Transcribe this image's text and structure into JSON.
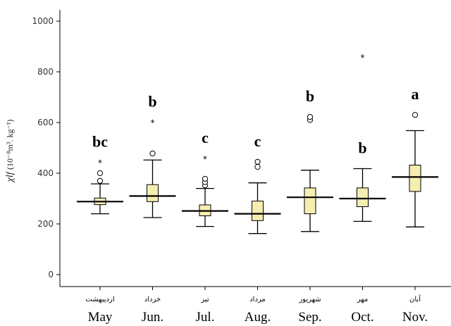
{
  "chart_data": {
    "type": "box",
    "title": "",
    "xlabel": "",
    "ylabel_main": "χlf",
    "ylabel_unit": "(10⁻⁸m³. kg⁻¹)",
    "ylim": [
      0,
      1000
    ],
    "yticks": [
      0,
      200,
      400,
      600,
      800,
      1000
    ],
    "grid": false,
    "colors": {
      "box_fill": "#f5eeb0",
      "stroke": "#000000"
    },
    "categories": [
      {
        "label": "May",
        "label_fa": "اردیبهشت",
        "letter": "bc",
        "min": 240,
        "q1": 276,
        "median": 288,
        "q3": 302,
        "max": 358,
        "outliers": [
          370,
          400
        ],
        "extremes": [
          443
        ]
      },
      {
        "label": "Jun.",
        "label_fa": "خرداد",
        "letter": "b",
        "min": 225,
        "q1": 288,
        "median": 310,
        "q3": 355,
        "max": 452,
        "outliers": [
          478
        ],
        "extremes": [
          602
        ]
      },
      {
        "label": "Jul.",
        "label_fa": "تیر",
        "letter": "c",
        "min": 190,
        "q1": 232,
        "median": 251,
        "q3": 275,
        "max": 340,
        "outliers": [
          352,
          365,
          378
        ],
        "extremes": [
          458
        ]
      },
      {
        "label": "Aug.",
        "label_fa": "مرداد",
        "letter": "c",
        "min": 162,
        "q1": 213,
        "median": 240,
        "q3": 290,
        "max": 362,
        "outliers": [
          425,
          445
        ],
        "extremes": []
      },
      {
        "label": "Sep.",
        "label_fa": "شهریور",
        "letter": "b",
        "min": 170,
        "q1": 240,
        "median": 305,
        "q3": 342,
        "max": 412,
        "outliers": [
          610,
          622
        ],
        "extremes": []
      },
      {
        "label": "Oct.",
        "label_fa": "مهر",
        "letter": "b",
        "min": 210,
        "q1": 268,
        "median": 300,
        "q3": 342,
        "max": 418,
        "outliers": [],
        "extremes": [
          858
        ]
      },
      {
        "label": "Nov.",
        "label_fa": "آبان",
        "letter": "a",
        "min": 188,
        "q1": 328,
        "median": 385,
        "q3": 432,
        "max": 568,
        "outliers": [
          630
        ],
        "extremes": []
      }
    ]
  }
}
